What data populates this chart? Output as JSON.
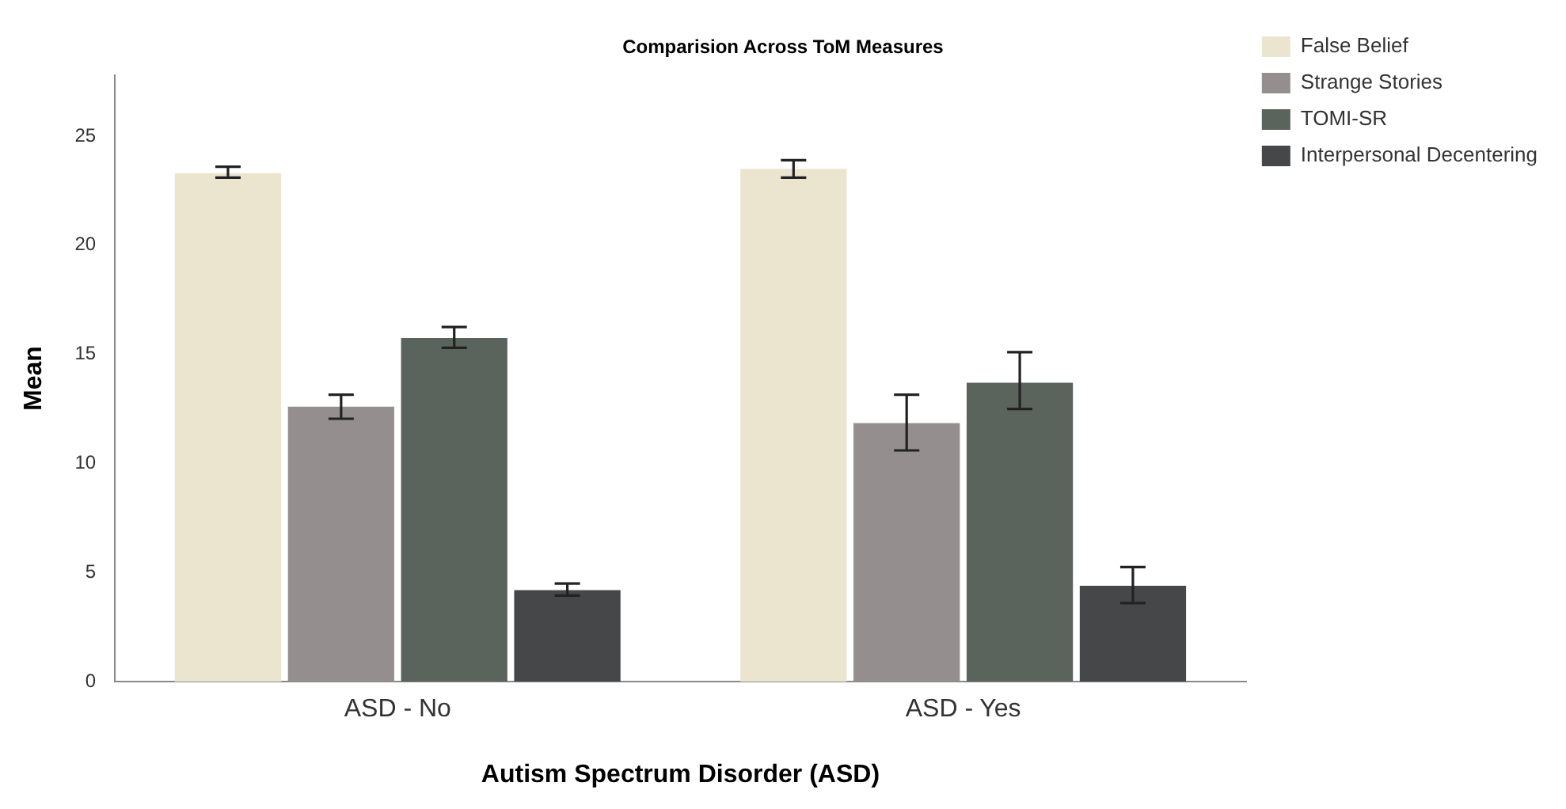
{
  "chart_data": {
    "type": "bar",
    "title": "Comparision Across ToM Measures",
    "xlabel": "Autism Spectrum Disorder (ASD)",
    "ylabel": "Mean",
    "categories": [
      "ASD - No",
      "ASD - Yes"
    ],
    "series": [
      {
        "name": "False Belief",
        "color": "#ebe4cf",
        "values": [
          23.3,
          23.5
        ],
        "errors": [
          [
            23.1,
            23.6
          ],
          [
            23.1,
            23.9
          ]
        ]
      },
      {
        "name": "Strange Stories",
        "color": "#948f8e",
        "values": [
          12.6,
          11.85
        ],
        "errors": [
          [
            12.05,
            13.15
          ],
          [
            10.6,
            13.15
          ]
        ]
      },
      {
        "name": "TOMI-SR",
        "color": "#5b635d",
        "values": [
          15.75,
          13.7
        ],
        "errors": [
          [
            15.3,
            16.25
          ],
          [
            12.5,
            15.1
          ]
        ]
      },
      {
        "name": "Interpersonal Decentering",
        "color": "#464749",
        "values": [
          4.2,
          4.4
        ],
        "errors": [
          [
            3.95,
            4.5
          ],
          [
            3.6,
            5.25
          ]
        ]
      }
    ],
    "ylim": [
      0,
      27.8
    ],
    "yticks": [
      0,
      5,
      10,
      15,
      20,
      25
    ],
    "grid": false,
    "legend": "top right"
  }
}
